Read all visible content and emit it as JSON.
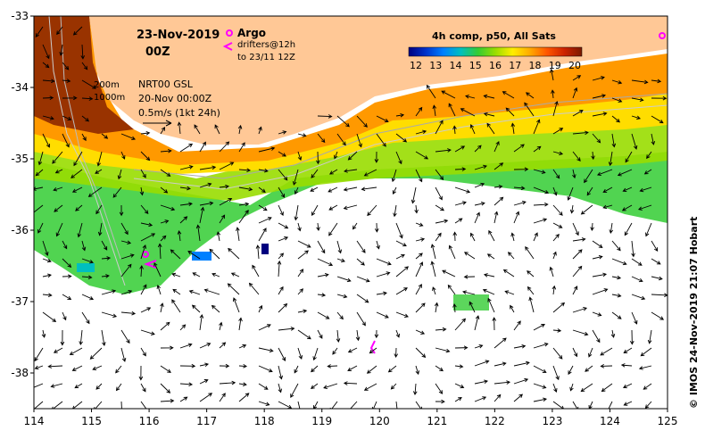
{
  "map": {
    "title_date": "23-Nov-2019",
    "title_time": "00Z",
    "legend": {
      "argo_label": "Argo",
      "drifters_label": "drifters@12h",
      "drifters_sub": "to 23/11 12Z",
      "argo_color": "#ff00ff",
      "drifter_color": "#ff00ff"
    },
    "contours": {
      "depth_1": "200m",
      "depth_2": "1000m",
      "product": "NRT00 GSL",
      "product_date": "20-Nov 00:00Z",
      "velocity_scale": "0.5m/s (1kt 24h)"
    },
    "colorbar": {
      "title": "4h comp, p50, All Sats",
      "ticks": [
        "12",
        "13",
        "14",
        "15",
        "16",
        "17",
        "18",
        "19",
        "20"
      ],
      "colors": [
        "#00007f",
        "#0033cc",
        "#0080ff",
        "#00bfbf",
        "#33cc33",
        "#99dd00",
        "#ffee00",
        "#ffaa00",
        "#ff5500",
        "#cc2200",
        "#7a1a00"
      ]
    },
    "x_ticks": [
      "114",
      "115",
      "116",
      "117",
      "118",
      "119",
      "120",
      "121",
      "122",
      "123",
      "124",
      "125"
    ],
    "y_ticks": [
      "-33",
      "-34",
      "-35",
      "-36",
      "-37",
      "-38"
    ],
    "credit": "© IMOS 24-Nov-2019 21:07 Hobart",
    "land_color": "#ffc896",
    "x_range": [
      114,
      125
    ],
    "y_range": [
      -33,
      -38.5
    ]
  }
}
